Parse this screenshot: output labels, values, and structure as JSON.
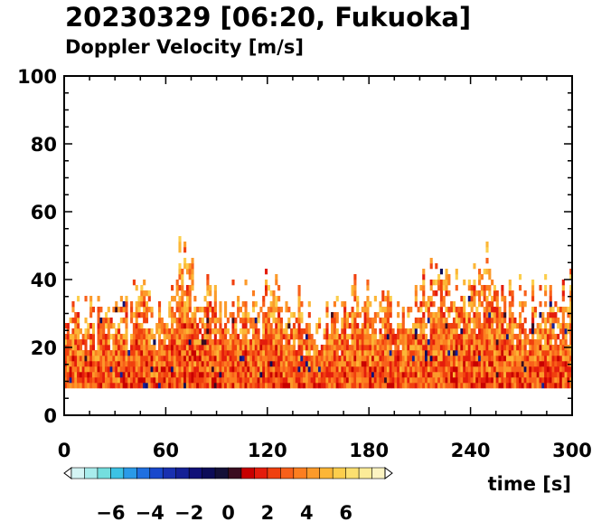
{
  "title": "20230329 [06:20, Fukuoka]",
  "subtitle": "Doppler Velocity [m/s]",
  "chart_data": {
    "type": "heatmap",
    "title": "20230329 [06:20, Fukuoka]",
    "subtitle": "Doppler Velocity [m/s]",
    "xlabel": "time [s]",
    "ylabel": "",
    "xlim": [
      0,
      300
    ],
    "ylim": [
      0,
      100
    ],
    "x_ticks": [
      0,
      60,
      120,
      180,
      240,
      300
    ],
    "y_ticks": [
      0,
      20,
      40,
      60,
      80,
      100
    ],
    "grid": false,
    "data_bottom": 8,
    "echo_top_profile": {
      "time": [
        0,
        10,
        20,
        30,
        40,
        45,
        50,
        60,
        68,
        72,
        80,
        90,
        100,
        110,
        120,
        130,
        140,
        150,
        160,
        170,
        180,
        190,
        200,
        210,
        217,
        225,
        235,
        245,
        252,
        260,
        270,
        280,
        290,
        300
      ],
      "top_height": [
        27,
        29,
        30,
        31,
        36,
        41,
        33,
        30,
        48,
        44,
        38,
        33,
        36,
        34,
        38,
        34,
        31,
        25,
        30,
        35,
        37,
        34,
        31,
        35,
        43,
        40,
        37,
        40,
        47,
        35,
        33,
        34,
        37,
        38
      ]
    },
    "colorbar": {
      "ticks": [
        -6,
        -4,
        -2,
        0,
        2,
        4,
        6
      ],
      "range": [
        -8,
        8
      ],
      "extend": "both",
      "colors": [
        "#ffffff",
        "#d4f4f4",
        "#a8ecec",
        "#74dede",
        "#3cc2e4",
        "#2a9ae8",
        "#2070e0",
        "#1848cc",
        "#1830b0",
        "#142096",
        "#101078",
        "#0c0c58",
        "#141038",
        "#3a0c20",
        "#c80000",
        "#e41c0c",
        "#f0400e",
        "#f8601a",
        "#fc7e20",
        "#fc9a2a",
        "#fcb636",
        "#fcce4c",
        "#fce070",
        "#fcec98",
        "#fcf4c2",
        "#ffffff"
      ]
    }
  },
  "colors": {
    "axis": "#000000",
    "background": "#ffffff"
  }
}
